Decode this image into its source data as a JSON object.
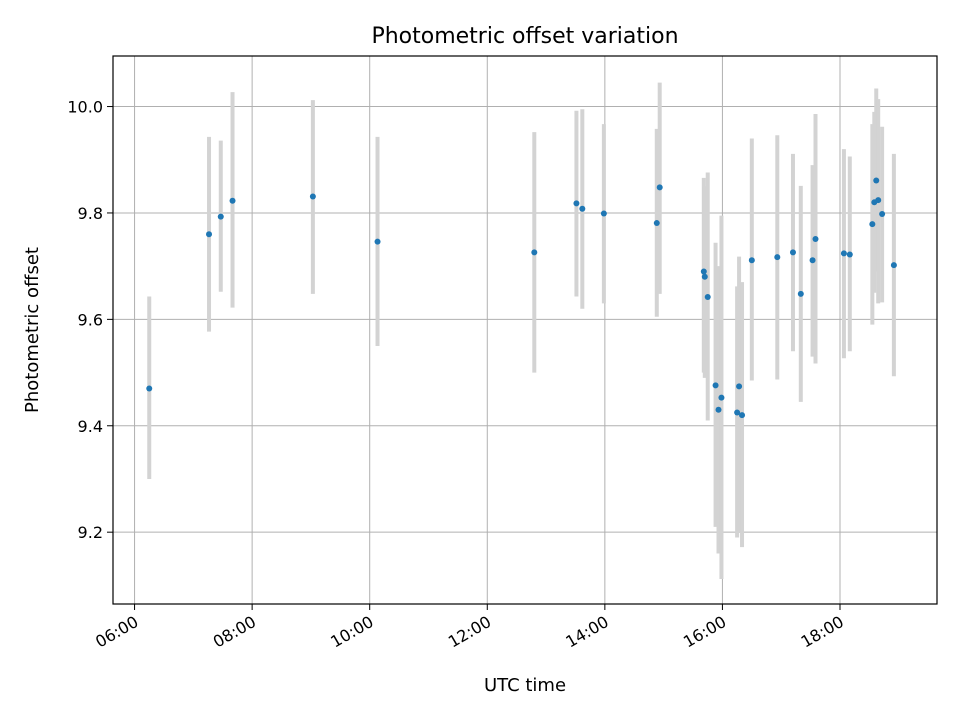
{
  "chart_data": {
    "type": "scatter",
    "title": "Photometric offset variation",
    "xlabel": "UTC time",
    "ylabel": "Photometric offset",
    "xlim": [
      "05:38",
      "19:39"
    ],
    "ylim": [
      9.065,
      10.095
    ],
    "grid": true,
    "x_ticks": [
      "06:00",
      "08:00",
      "10:00",
      "12:00",
      "14:00",
      "16:00",
      "18:00"
    ],
    "y_ticks": [
      9.2,
      9.4,
      9.6,
      9.8,
      10.0
    ],
    "y_tick_labels": [
      "9.2",
      "9.4",
      "9.6",
      "9.8",
      "10.0"
    ],
    "colors": {
      "points": "#1f77b4",
      "error_bars": "#d3d3d3"
    },
    "points": [
      {
        "x": "06:15",
        "y": 9.47,
        "yerr_low": 9.3,
        "yerr_high": 9.643
      },
      {
        "x": "07:16",
        "y": 9.76,
        "yerr_low": 9.577,
        "yerr_high": 9.943
      },
      {
        "x": "07:28",
        "y": 9.793,
        "yerr_low": 9.652,
        "yerr_high": 9.936
      },
      {
        "x": "07:40",
        "y": 9.823,
        "yerr_low": 9.622,
        "yerr_high": 10.027
      },
      {
        "x": "09:02",
        "y": 9.831,
        "yerr_low": 9.648,
        "yerr_high": 10.012
      },
      {
        "x": "10:08",
        "y": 9.746,
        "yerr_low": 9.55,
        "yerr_high": 9.943
      },
      {
        "x": "12:48",
        "y": 9.726,
        "yerr_low": 9.5,
        "yerr_high": 9.952
      },
      {
        "x": "13:31",
        "y": 9.818,
        "yerr_low": 9.643,
        "yerr_high": 9.992
      },
      {
        "x": "13:37",
        "y": 9.808,
        "yerr_low": 9.62,
        "yerr_high": 9.995
      },
      {
        "x": "13:59",
        "y": 9.799,
        "yerr_low": 9.63,
        "yerr_high": 9.967
      },
      {
        "x": "14:53",
        "y": 9.781,
        "yerr_low": 9.605,
        "yerr_high": 9.958
      },
      {
        "x": "14:56",
        "y": 9.848,
        "yerr_low": 9.648,
        "yerr_high": 10.045
      },
      {
        "x": "15:41",
        "y": 9.69,
        "yerr_low": 9.5,
        "yerr_high": 9.866
      },
      {
        "x": "15:42",
        "y": 9.68,
        "yerr_low": 9.49,
        "yerr_high": 9.85
      },
      {
        "x": "15:45",
        "y": 9.642,
        "yerr_low": 9.41,
        "yerr_high": 9.876
      },
      {
        "x": "15:53",
        "y": 9.476,
        "yerr_low": 9.21,
        "yerr_high": 9.744
      },
      {
        "x": "15:56",
        "y": 9.43,
        "yerr_low": 9.16,
        "yerr_high": 9.7
      },
      {
        "x": "15:59",
        "y": 9.453,
        "yerr_low": 9.112,
        "yerr_high": 9.795
      },
      {
        "x": "16:15",
        "y": 9.425,
        "yerr_low": 9.19,
        "yerr_high": 9.662
      },
      {
        "x": "16:17",
        "y": 9.474,
        "yerr_low": 9.2,
        "yerr_high": 9.718
      },
      {
        "x": "16:20",
        "y": 9.42,
        "yerr_low": 9.172,
        "yerr_high": 9.67
      },
      {
        "x": "16:30",
        "y": 9.711,
        "yerr_low": 9.485,
        "yerr_high": 9.94
      },
      {
        "x": "16:56",
        "y": 9.717,
        "yerr_low": 9.487,
        "yerr_high": 9.946
      },
      {
        "x": "17:12",
        "y": 9.726,
        "yerr_low": 9.54,
        "yerr_high": 9.911
      },
      {
        "x": "17:20",
        "y": 9.648,
        "yerr_low": 9.445,
        "yerr_high": 9.851
      },
      {
        "x": "17:32",
        "y": 9.711,
        "yerr_low": 9.53,
        "yerr_high": 9.89
      },
      {
        "x": "17:35",
        "y": 9.751,
        "yerr_low": 9.517,
        "yerr_high": 9.986
      },
      {
        "x": "18:04",
        "y": 9.724,
        "yerr_low": 9.527,
        "yerr_high": 9.92
      },
      {
        "x": "18:10",
        "y": 9.722,
        "yerr_low": 9.54,
        "yerr_high": 9.906
      },
      {
        "x": "18:33",
        "y": 9.779,
        "yerr_low": 9.59,
        "yerr_high": 9.967
      },
      {
        "x": "18:35",
        "y": 9.82,
        "yerr_low": 9.65,
        "yerr_high": 9.99
      },
      {
        "x": "18:37",
        "y": 9.861,
        "yerr_low": 9.69,
        "yerr_high": 10.034
      },
      {
        "x": "18:39",
        "y": 9.824,
        "yerr_low": 9.63,
        "yerr_high": 10.014
      },
      {
        "x": "18:43",
        "y": 9.798,
        "yerr_low": 9.632,
        "yerr_high": 9.962
      },
      {
        "x": "18:55",
        "y": 9.702,
        "yerr_low": 9.493,
        "yerr_high": 9.911
      }
    ]
  }
}
